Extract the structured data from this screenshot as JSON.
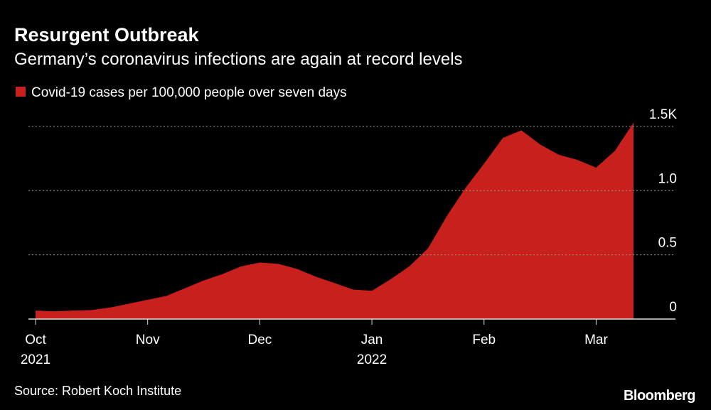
{
  "chart_data": {
    "type": "area",
    "title": "Resurgent Outbreak",
    "subtitle": "Germany’s coronavirus infections are again at record levels",
    "source": "Source: Robert Koch Institute",
    "brand": "Bloomberg",
    "categories": [
      "Oct 2021",
      null,
      null,
      null,
      null,
      null,
      "Nov",
      null,
      null,
      null,
      null,
      null,
      "Dec",
      null,
      null,
      null,
      null,
      null,
      "Jan 2022",
      null,
      null,
      null,
      null,
      null,
      "Feb",
      null,
      null,
      null,
      null,
      null,
      "Mar",
      null,
      null
    ],
    "series": [
      {
        "name": "Covid-19 cases per 100,000 people over seven days",
        "color": "#c8201d",
        "values": [
          0.066,
          0.06,
          0.066,
          0.07,
          0.09,
          0.12,
          0.15,
          0.18,
          0.24,
          0.3,
          0.35,
          0.41,
          0.44,
          0.43,
          0.39,
          0.33,
          0.28,
          0.23,
          0.22,
          0.31,
          0.41,
          0.55,
          0.8,
          1.02,
          1.21,
          1.41,
          1.47,
          1.36,
          1.28,
          1.24,
          1.18,
          1.31,
          1.53
        ]
      }
    ],
    "ylim": [
      0,
      1.5
    ],
    "yticks": [
      0,
      0.5,
      {
        "value": 1,
        "label": "1.0"
      },
      {
        "value": 1.5,
        "label": "1.5K"
      }
    ],
    "grid": true
  }
}
